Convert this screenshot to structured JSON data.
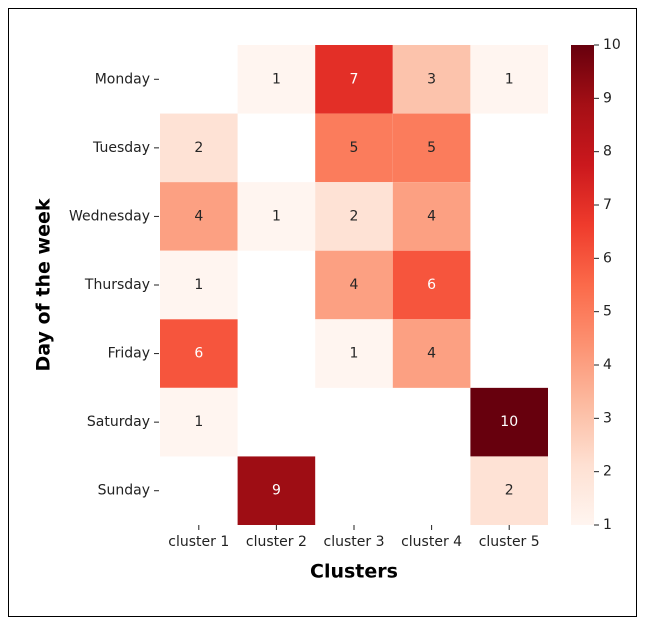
{
  "chart_data": {
    "type": "heatmap",
    "xlabel": "Clusters",
    "ylabel": "Day of the week",
    "categories": [
      "cluster 1",
      "cluster 2",
      "cluster 3",
      "cluster 4",
      "cluster 5"
    ],
    "rows": [
      "Monday",
      "Tuesday",
      "Wednesday",
      "Thursday",
      "Friday",
      "Saturday",
      "Sunday"
    ],
    "values": [
      [
        null,
        1,
        7,
        3,
        1
      ],
      [
        2,
        null,
        5,
        5,
        null
      ],
      [
        4,
        1,
        2,
        4,
        null
      ],
      [
        1,
        null,
        4,
        6,
        null
      ],
      [
        6,
        null,
        1,
        4,
        null
      ],
      [
        1,
        null,
        null,
        null,
        10
      ],
      [
        null,
        9,
        null,
        null,
        2
      ]
    ],
    "colormap": [
      "#fff5f0",
      "#fee0d2",
      "#fcbba1",
      "#fc9272",
      "#fb6a4a",
      "#ef3b2c",
      "#cb181d",
      "#a50f15",
      "#67000d"
    ],
    "clim": [
      1,
      10
    ],
    "cticks": [
      1,
      2,
      3,
      4,
      5,
      6,
      7,
      8,
      9,
      10
    ]
  }
}
